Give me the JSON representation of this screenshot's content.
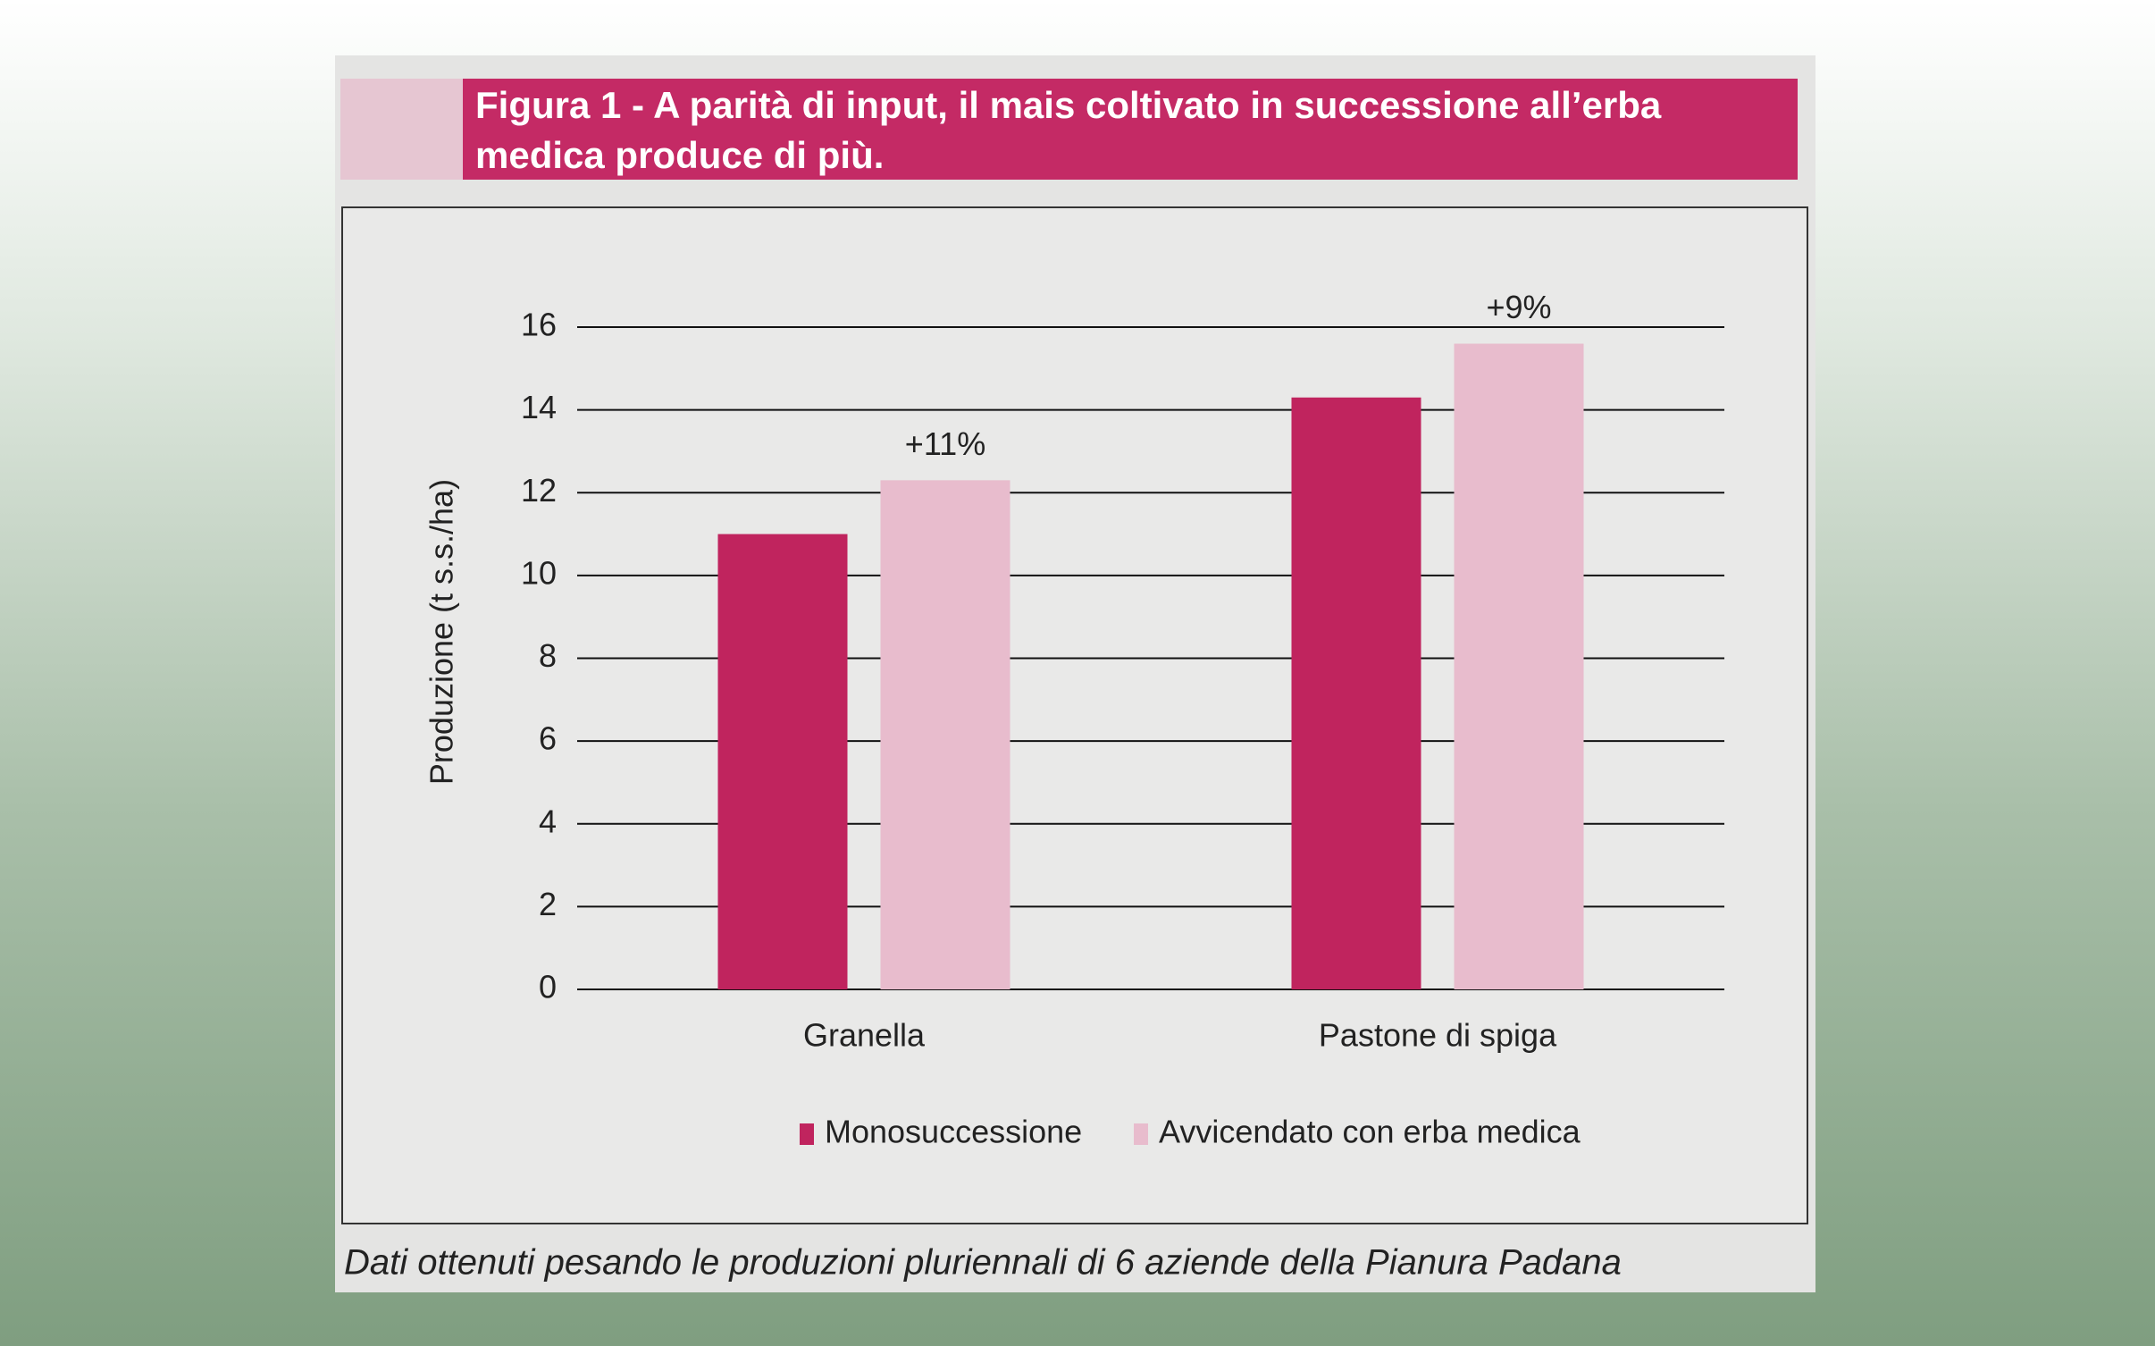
{
  "chart_data": {
    "type": "bar",
    "title": "Figura 1 - A parità di input, il mais coltivato in successione all’erba medica produce di più.",
    "y_label": "Produzione  (t s.s./ha)",
    "categories": [
      "Granella",
      "Pastone di spiga"
    ],
    "series": [
      {
        "name": "Monosuccessione",
        "color": "#c0245e",
        "values": [
          11.0,
          14.3
        ]
      },
      {
        "name": "Avvicendato con erba medica",
        "color": "#e8bccd",
        "values": [
          12.3,
          15.6
        ]
      }
    ],
    "annotations": [
      "+11%",
      "+9%"
    ],
    "ylim": [
      0,
      16
    ],
    "yticks": [
      0,
      2,
      4,
      6,
      8,
      10,
      12,
      14,
      16
    ],
    "grid": true,
    "caption": "Dati ottenuti pesando le produzioni pluriennali di 6 aziende della Pianura Padana"
  }
}
